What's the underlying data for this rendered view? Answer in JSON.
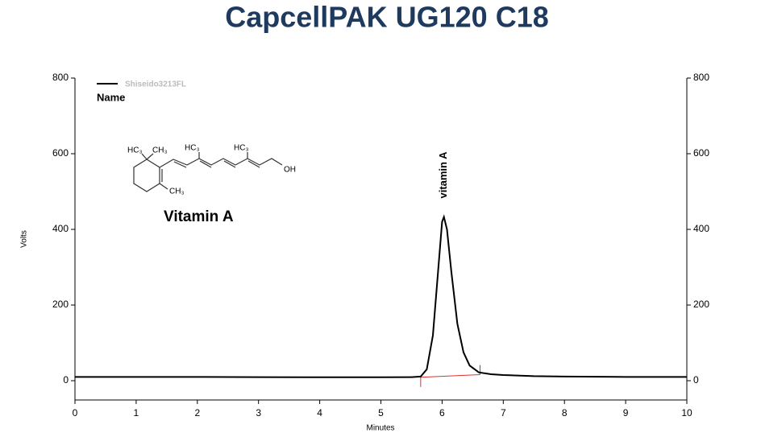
{
  "chart_data": {
    "type": "line",
    "title": "CapcellPAK UG120 C18",
    "x_label": "Minutes",
    "y_label": "Volts",
    "x": [
      0,
      1,
      2,
      3,
      4,
      5,
      5.5,
      5.65,
      5.75,
      5.85,
      5.93,
      6.0,
      6.03,
      6.08,
      6.15,
      6.25,
      6.35,
      6.45,
      6.6,
      6.8,
      7,
      7.5,
      8,
      9,
      10
    ],
    "series": [
      {
        "name": "Shiseido3213FL",
        "color": "#000000",
        "values": [
          10,
          10,
          10,
          9.5,
          9,
          9,
          9.5,
          11,
          30,
          120,
          280,
          420,
          433,
          400,
          290,
          150,
          75,
          40,
          22,
          17,
          15,
          12,
          11,
          10,
          10
        ]
      }
    ],
    "legend_title": "Name",
    "xlim": [
      0,
      10
    ],
    "xticks": [
      0,
      1,
      2,
      3,
      4,
      5,
      6,
      7,
      8,
      9,
      10
    ],
    "ylim": [
      -51,
      800
    ],
    "yticks": [
      0,
      200,
      400,
      600,
      800
    ],
    "y2lim": [
      -51,
      800
    ],
    "y2ticks": [
      0,
      200,
      400,
      600,
      800
    ],
    "annotations": [
      {
        "text": "vitamin A"
      }
    ],
    "baseline": {
      "x": [
        5.65,
        6.62
      ],
      "values": [
        9,
        16
      ],
      "color": "#e03030",
      "end_color": "#4050c0"
    },
    "structure_name": "Vitamin A",
    "structure_labels": [
      "HC₃",
      "CH₃",
      "HC₃",
      "HC₃",
      "CH₃",
      "OH"
    ]
  }
}
